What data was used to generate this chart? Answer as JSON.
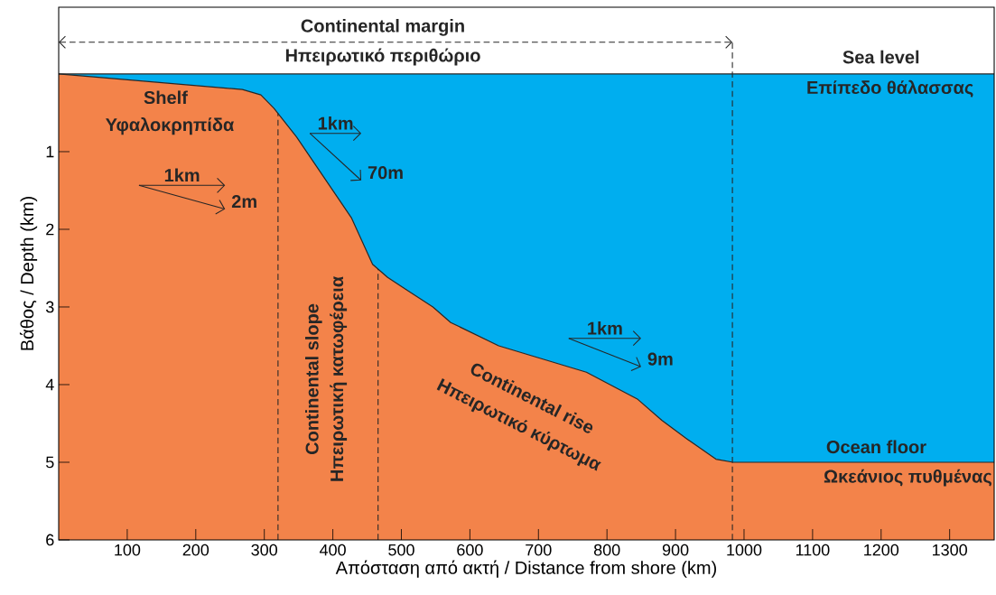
{
  "chart_data": {
    "type": "area",
    "stacked": true,
    "xlabel": "Απόσταση από ακτή / Distance from shore (km)",
    "ylabel": "Βάθος / Depth (km)",
    "x": [
      0,
      268,
      295,
      314,
      347,
      387,
      427,
      458,
      480,
      506,
      546,
      572,
      642,
      770,
      845,
      880,
      915,
      959,
      984,
      1365
    ],
    "series": [
      {
        "color": "#00aeef",
        "values": [
          0,
          0.2,
          0.27,
          0.44,
          0.81,
          1.33,
          1.85,
          2.45,
          2.62,
          2.77,
          3.0,
          3.2,
          3.5,
          3.84,
          4.19,
          4.46,
          4.69,
          4.96,
          5.0,
          5.0
        ]
      },
      {
        "color": "#f3834a",
        "values": [
          6,
          5.8,
          5.73,
          5.56,
          5.19,
          4.67,
          4.15,
          3.55,
          3.38,
          3.23,
          3.0,
          2.8,
          2.5,
          2.16,
          1.81,
          1.54,
          1.31,
          1.04,
          1.0,
          1.0
        ]
      },
      {
        "type": "line",
        "color": "#262626",
        "line_style": "dashed",
        "marker": "cross",
        "x": [
          0,
          983
        ],
        "values": [
          -0.41,
          -0.41
        ]
      }
    ],
    "xlim": [
      0,
      1365
    ],
    "ylim": [
      6,
      -0.86
    ],
    "xticks": [
      100,
      200,
      300,
      400,
      500,
      600,
      700,
      800,
      900,
      1000,
      1100,
      1200,
      1300
    ],
    "yticks": [
      1,
      2,
      3,
      4,
      5,
      6
    ],
    "ref_lines": [
      {
        "axis": "x",
        "value": 320,
        "line_style": "dashed"
      },
      {
        "axis": "x",
        "value": 466,
        "line_style": "dashed"
      },
      {
        "axis": "x",
        "value": 983,
        "line_style": "dashed"
      }
    ],
    "annotations": [
      "Continental margin",
      "Ηπειρωτικό περιθώριο",
      "Sea level",
      "Επίπεδο θάλασσας",
      "Shelf",
      "Υφαλοκρηπίδα",
      "1km",
      "2m",
      "1km",
      "70m",
      "1km",
      "9m",
      "Continental slope",
      "Ηπειρωτική κατωφέρεια",
      "Continental rise",
      "Ηπειρωτικό κύρτωμα",
      "Ocean floor",
      "Ωκεάνιος πυθμένας"
    ]
  }
}
